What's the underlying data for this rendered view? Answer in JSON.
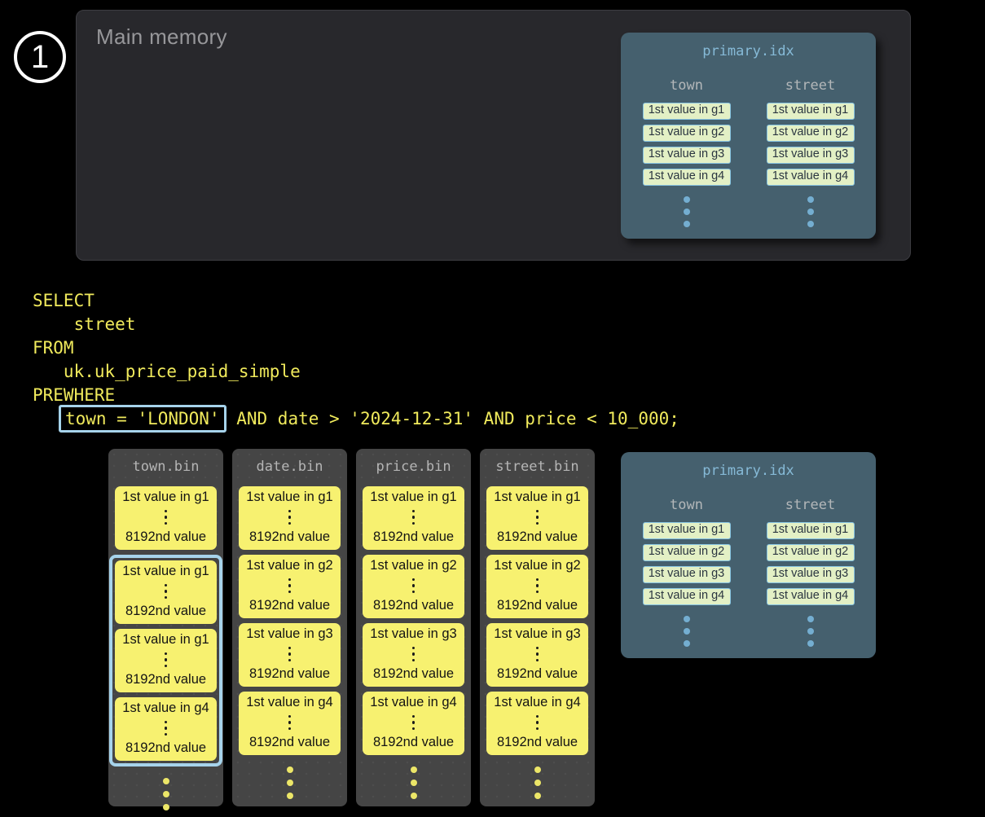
{
  "step_badge": "1",
  "main_memory": {
    "title": "Main memory"
  },
  "primary_idx_top": {
    "title": "primary.idx",
    "columns": [
      {
        "header": "town",
        "cells": [
          "1st value in g1",
          "1st value in g2",
          "1st value in g3",
          "1st value in g4"
        ]
      },
      {
        "header": "street",
        "cells": [
          "1st value in g1",
          "1st value in g2",
          "1st value in g3",
          "1st value in g4"
        ]
      }
    ]
  },
  "primary_idx_bottom": {
    "title": "primary.idx",
    "columns": [
      {
        "header": "town",
        "cells": [
          "1st value in g1",
          "1st value in g2",
          "1st value in g3",
          "1st value in g4"
        ]
      },
      {
        "header": "street",
        "cells": [
          "1st value in g1",
          "1st value in g2",
          "1st value in g3",
          "1st value in g4"
        ]
      }
    ]
  },
  "sql": {
    "lines": [
      "SELECT",
      "    street",
      "FROM",
      "   uk.uk_price_paid_simple",
      "PREWHERE"
    ],
    "last_line": {
      "indent": "   ",
      "highlighted": "town = 'LONDON'",
      "rest": " AND date > '2024-12-31' AND price < 10_000;"
    }
  },
  "bins": [
    {
      "title": "town.bin",
      "selection": {
        "highlighted_blocks": [
          2,
          3,
          4
        ]
      },
      "blocks": [
        {
          "first": "1st value in g1",
          "last": "8192nd value"
        },
        {
          "first": "1st value in g1",
          "last": "8192nd value"
        },
        {
          "first": "1st value in g1",
          "last": "8192nd value"
        },
        {
          "first": "1st value in g4",
          "last": "8192nd value"
        }
      ]
    },
    {
      "title": "date.bin",
      "blocks": [
        {
          "first": "1st value in g1",
          "last": "8192nd value"
        },
        {
          "first": "1st value in g2",
          "last": "8192nd value"
        },
        {
          "first": "1st value in g3",
          "last": "8192nd value"
        },
        {
          "first": "1st value in g4",
          "last": "8192nd value"
        }
      ]
    },
    {
      "title": "price.bin",
      "blocks": [
        {
          "first": "1st value in g1",
          "last": "8192nd value"
        },
        {
          "first": "1st value in g2",
          "last": "8192nd value"
        },
        {
          "first": "1st value in g3",
          "last": "8192nd value"
        },
        {
          "first": "1st value in g4",
          "last": "8192nd value"
        }
      ]
    },
    {
      "title": "street.bin",
      "blocks": [
        {
          "first": "1st value in g1",
          "last": "8192nd value"
        },
        {
          "first": "1st value in g2",
          "last": "8192nd value"
        },
        {
          "first": "1st value in g3",
          "last": "8192nd value"
        },
        {
          "first": "1st value in g4",
          "last": "8192nd value"
        }
      ]
    }
  ],
  "colors": {
    "background": "#000000",
    "main_memory_panel": "#28282c",
    "idx_panel": "#45606e",
    "idx_title_blue": "#86bad7",
    "idx_header_gray": "#b3b7b9",
    "idx_cell_bg": "#e3f0c5",
    "idx_cell_border": "#87c4e2",
    "idx_dots_blue": "#74aed1",
    "granule_yellow": "#f7f170",
    "bin_column_bg": "#454545",
    "sql_yellow": "#f0ea5c",
    "highlight_blue": "#a6d3eb"
  }
}
